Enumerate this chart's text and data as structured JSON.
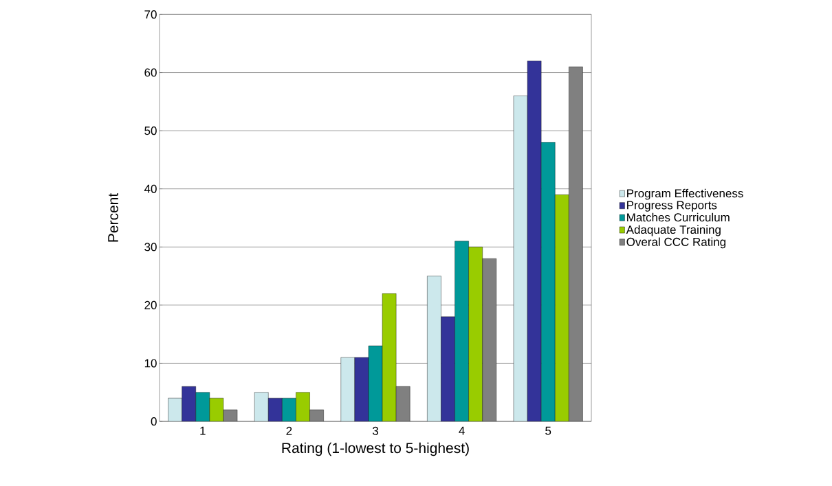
{
  "chart_data": {
    "type": "bar",
    "xlabel": "Rating (1-lowest to 5-highest)",
    "ylabel": "Percent",
    "categories": [
      "1",
      "2",
      "3",
      "4",
      "5"
    ],
    "series": [
      {
        "name": "Program Effectiveness",
        "color": "#cce8ec",
        "values": [
          4,
          5,
          11,
          25,
          56
        ]
      },
      {
        "name": "Progress Reports",
        "color": "#333399",
        "values": [
          6,
          4,
          11,
          18,
          62
        ]
      },
      {
        "name": "Matches Curriculum",
        "color": "#009999",
        "values": [
          5,
          4,
          13,
          31,
          48
        ]
      },
      {
        "name": "Adaquate Training",
        "color": "#99cc00",
        "values": [
          4,
          5,
          22,
          30,
          39
        ]
      },
      {
        "name": "Overal CCC Rating",
        "color": "#808080",
        "values": [
          2,
          2,
          6,
          28,
          61
        ]
      }
    ],
    "ylim": [
      0,
      70
    ],
    "yticks": [
      0,
      10,
      20,
      30,
      40,
      50,
      60,
      70
    ],
    "grid": "y",
    "legend": "right"
  }
}
